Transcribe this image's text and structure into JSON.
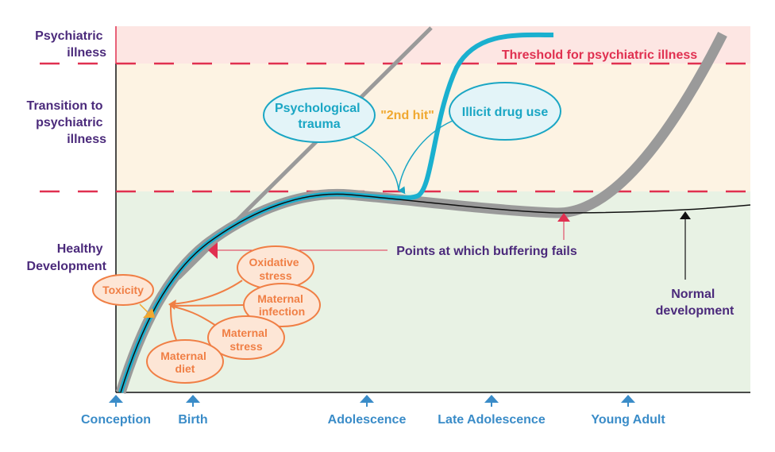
{
  "zones": [
    {
      "label_lines": [
        "Psychiatric",
        "illness"
      ],
      "color": "#fde6e3"
    },
    {
      "label_lines": [
        "Transition to",
        "psychiatric",
        "illness"
      ],
      "color": "#fdf3e3"
    },
    {
      "label_lines": [
        "Healthy",
        "Development"
      ],
      "color": "#e8f2e4"
    }
  ],
  "threshold_label": "Threshold for psychiatric illness",
  "timeline": [
    "Conception",
    "Birth",
    "Adolescence",
    "Late Adolescence",
    "Young Adult"
  ],
  "second_hits": {
    "label": "\"2nd hit\"",
    "items": [
      {
        "lines": [
          "Psychological",
          "trauma"
        ]
      },
      {
        "lines": [
          "Illicit drug use"
        ]
      }
    ]
  },
  "early_factors": [
    {
      "lines": [
        "Toxicity"
      ]
    },
    {
      "lines": [
        "Oxidative",
        "stress"
      ]
    },
    {
      "lines": [
        "Maternal",
        "infection"
      ]
    },
    {
      "lines": [
        "Maternal",
        "stress"
      ]
    },
    {
      "lines": [
        "Maternal",
        "diet"
      ]
    }
  ],
  "buffering_label": "Points at which buffering fails",
  "normal_label_lines": [
    "Normal",
    "development"
  ],
  "colors": {
    "threshold": "#e03050",
    "label": "#4b2a7b",
    "timeline": "#3a8cc8",
    "trajectory_gray": "#9a9a9a",
    "trajectory_cyan": "#1ab0cf",
    "factor": "#f07f45",
    "second_hit": "#f0a830"
  }
}
